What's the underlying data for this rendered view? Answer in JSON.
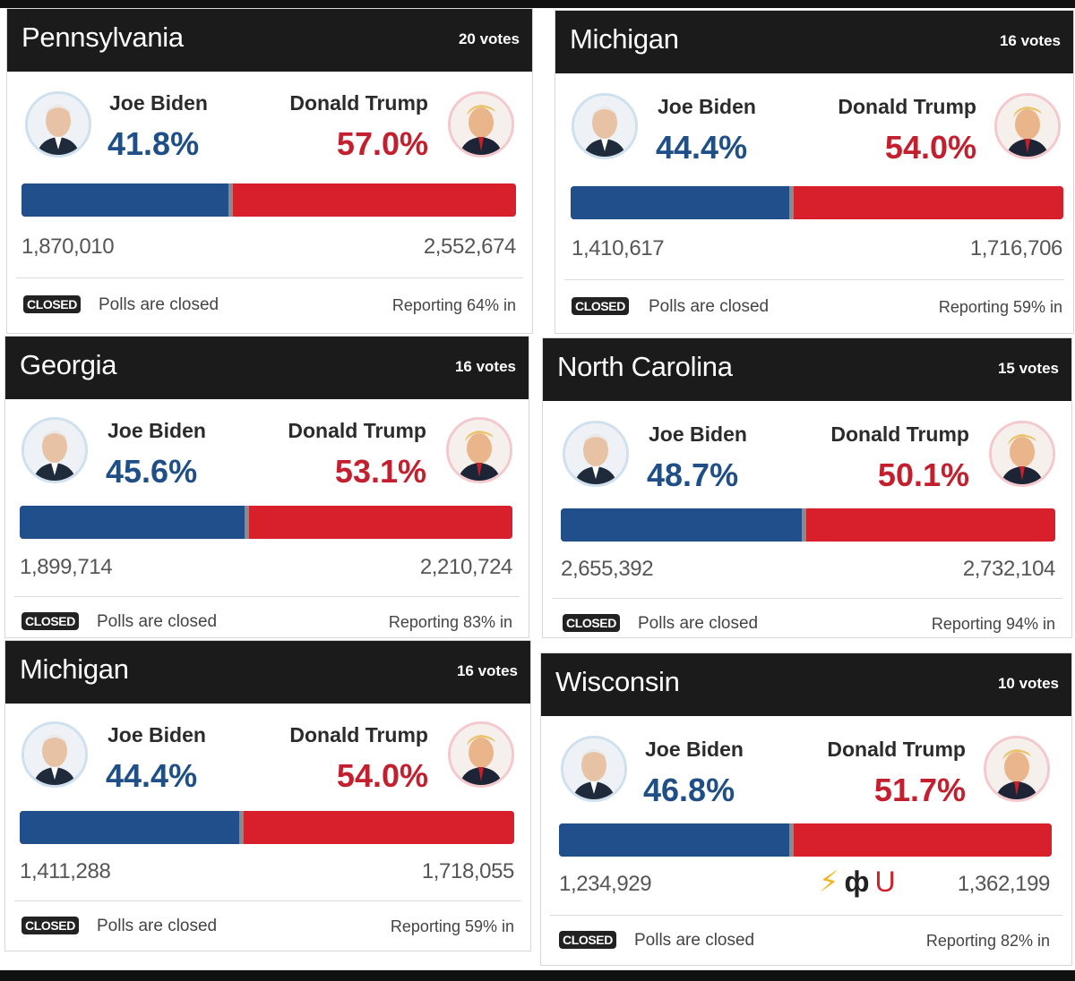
{
  "cards": [
    {
      "state": "Pennsylvania",
      "votes": "20 votes",
      "biden_name": "Joe Biden",
      "biden_pct": "41.8%",
      "biden_share": 0.418,
      "biden_count": "1,870,010",
      "trump_name": "Donald Trump",
      "trump_pct": "57.0%",
      "trump_count": "2,552,674",
      "closed": "CLOSED",
      "polls": "Polls are closed",
      "reporting": "Reporting 64% in"
    },
    {
      "state": "Michigan",
      "votes": "16 votes",
      "biden_name": "Joe Biden",
      "biden_pct": "44.4%",
      "biden_share": 0.444,
      "biden_count": "1,410,617",
      "trump_name": "Donald Trump",
      "trump_pct": "54.0%",
      "trump_count": "1,716,706",
      "closed": "CLOSED",
      "polls": "Polls are closed",
      "reporting": "Reporting 59% in"
    },
    {
      "state": "Georgia",
      "votes": "16 votes",
      "biden_name": "Joe Biden",
      "biden_pct": "45.6%",
      "biden_share": 0.456,
      "biden_count": "1,899,714",
      "trump_name": "Donald Trump",
      "trump_pct": "53.1%",
      "trump_count": "2,210,724",
      "closed": "CLOSED",
      "polls": "Polls are closed",
      "reporting": "Reporting 83% in"
    },
    {
      "state": "North Carolina",
      "votes": "15 votes",
      "biden_name": "Joe Biden",
      "biden_pct": "48.7%",
      "biden_share": 0.487,
      "biden_count": "2,655,392",
      "trump_name": "Donald Trump",
      "trump_pct": "50.1%",
      "trump_count": "2,732,104",
      "closed": "CLOSED",
      "polls": "Polls are closed",
      "reporting": "Reporting 94% in"
    },
    {
      "state": "Michigan",
      "votes": "16 votes",
      "biden_name": "Joe Biden",
      "biden_pct": "44.4%",
      "biden_share": 0.444,
      "biden_count": "1,411,288",
      "trump_name": "Donald Trump",
      "trump_pct": "54.0%",
      "trump_count": "1,718,055",
      "closed": "CLOSED",
      "polls": "Polls are closed",
      "reporting": "Reporting 59% in"
    },
    {
      "state": "Wisconsin",
      "votes": "10 votes",
      "biden_name": "Joe Biden",
      "biden_pct": "46.8%",
      "biden_share": 0.468,
      "biden_count": "1,234,929",
      "trump_name": "Donald Trump",
      "trump_pct": "51.7%",
      "trump_count": "1,362,199",
      "closed": "CLOSED",
      "polls": "Polls are closed",
      "reporting": "Reporting 82% in",
      "emojis": [
        "lightning-icon",
        "phi-icon",
        "magnet-icon"
      ]
    }
  ],
  "colors": {
    "biden": "#214f8b",
    "trump": "#d7202c",
    "header": "#1b1b1b"
  }
}
